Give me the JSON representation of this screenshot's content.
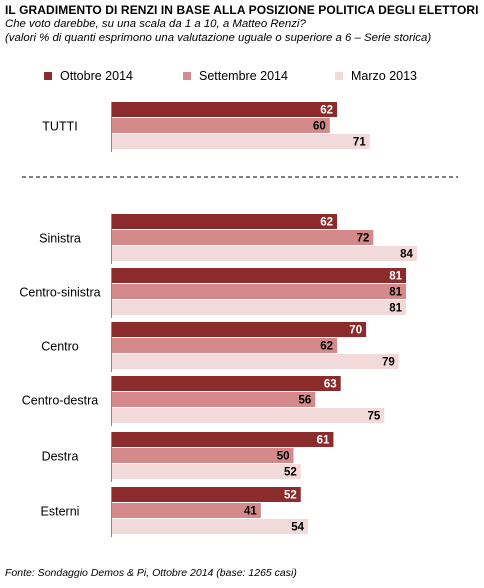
{
  "header": {
    "title": "IL GRADIMENTO DI RENZI IN BASE ALLA POSIZIONE POLITICA DEGLI ELETTORI",
    "subtitle1": "Che voto darebbe, su una scala da 1 a 10, a Matteo Renzi?",
    "subtitle2": "(valori % di quanti esprimono una valutazione uguale o superiore a 6 – Serie storica)"
  },
  "footer": {
    "source": "Fonte: Sondaggio Demos & Pi, Ottobre 2014 (base: 1265 casi)"
  },
  "chart_data": {
    "type": "bar",
    "orientation": "horizontal",
    "categories": [
      "TUTTI",
      "Sinistra",
      "Centro-sinistra",
      "Centro",
      "Centro-destra",
      "Destra",
      "Esterni"
    ],
    "series": [
      {
        "name": "Ottobre 2014",
        "color": "#8b2b2b",
        "label_color": "#ffffff",
        "values": [
          62,
          62,
          81,
          70,
          63,
          61,
          52
        ]
      },
      {
        "name": "Settembre 2014",
        "color": "#d48a8a",
        "label_color": "#000000",
        "values": [
          60,
          72,
          81,
          62,
          56,
          50,
          41
        ]
      },
      {
        "name": "Marzo 2013",
        "color": "#f3dada",
        "label_color": "#000000",
        "values": [
          71,
          84,
          81,
          79,
          75,
          52,
          54
        ]
      }
    ],
    "xlim": [
      0,
      100
    ],
    "grid": false,
    "legend": "top",
    "separator_after": "TUTTI"
  }
}
